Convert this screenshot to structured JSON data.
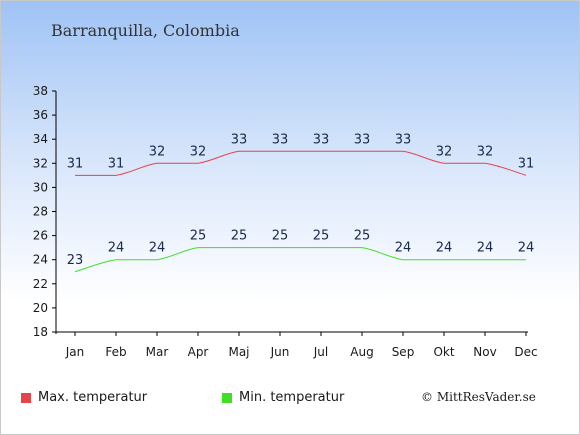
{
  "header": {
    "title": "Barranquilla, Colombia"
  },
  "legend": {
    "max_label": "Max. temperatur",
    "min_label": "Min. temperatur"
  },
  "footer": {
    "copyright": "© MittResVader.se"
  },
  "colors": {
    "max": "#e8424a",
    "min": "#3fe024"
  },
  "chart_data": {
    "type": "line",
    "title": "Barranquilla, Colombia",
    "xlabel": "",
    "ylabel": "",
    "ylim": [
      18,
      38
    ],
    "yticks": [
      18,
      20,
      22,
      24,
      26,
      28,
      30,
      32,
      34,
      36,
      38
    ],
    "categories": [
      "Jan",
      "Feb",
      "Mar",
      "Apr",
      "Maj",
      "Jun",
      "Jul",
      "Aug",
      "Sep",
      "Okt",
      "Nov",
      "Dec"
    ],
    "series": [
      {
        "name": "Max. temperatur",
        "values": [
          31,
          31,
          32,
          32,
          33,
          33,
          33,
          33,
          33,
          32,
          32,
          31
        ]
      },
      {
        "name": "Min. temperatur",
        "values": [
          23,
          24,
          24,
          25,
          25,
          25,
          25,
          25,
          24,
          24,
          24,
          24
        ]
      }
    ],
    "grid": false,
    "legend_position": "bottom"
  }
}
